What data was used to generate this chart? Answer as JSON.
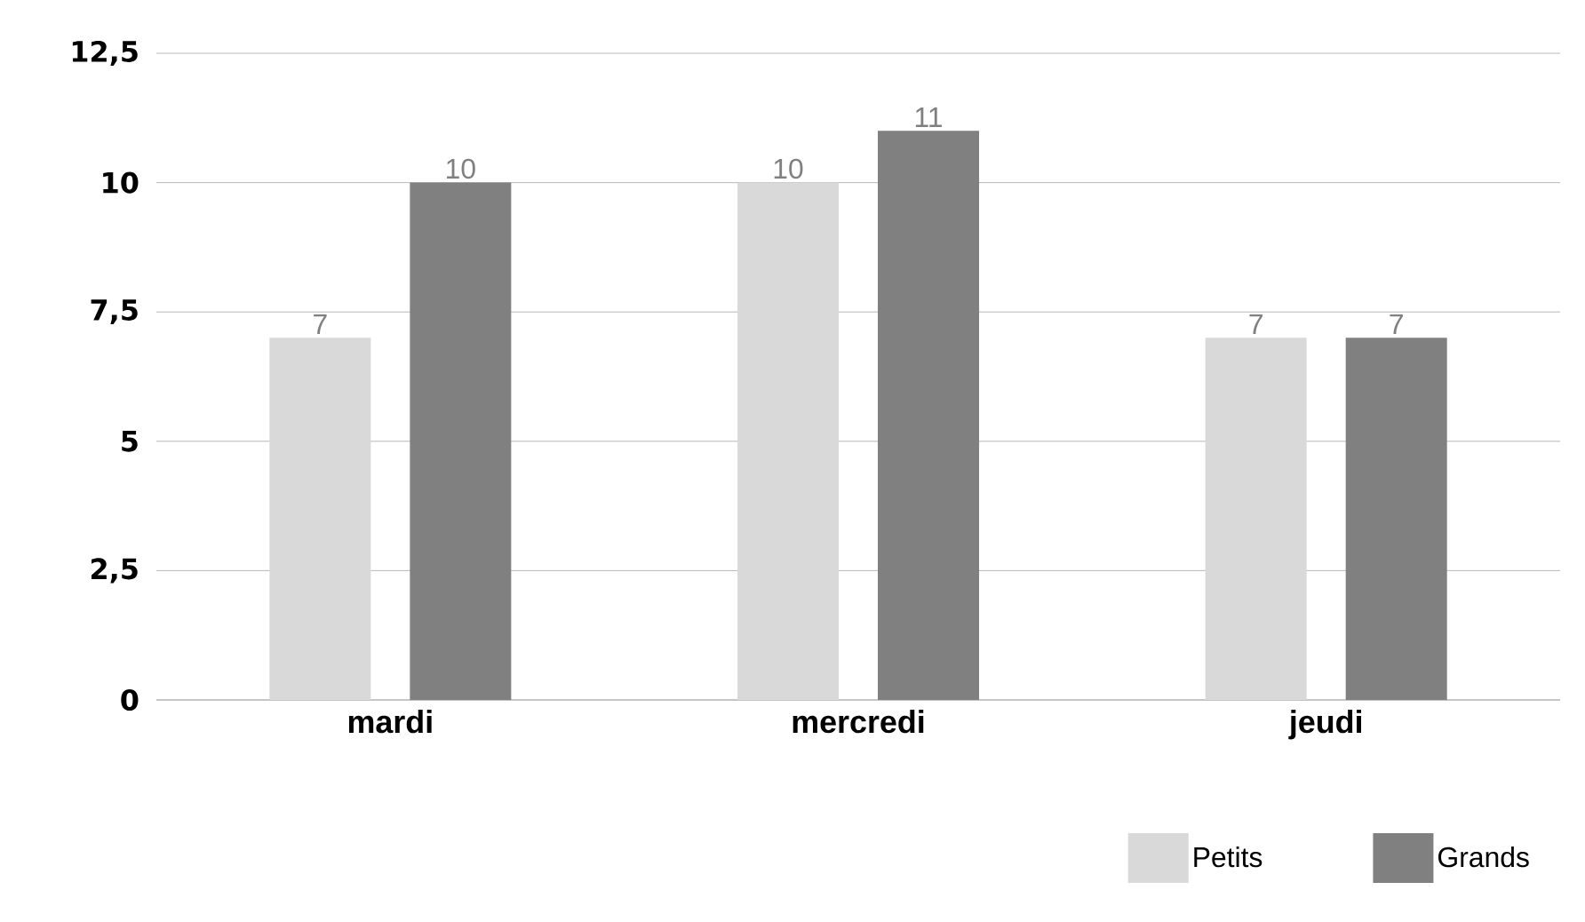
{
  "chart_data": {
    "type": "bar",
    "categories": [
      "mardi",
      "mercredi",
      "jeudi"
    ],
    "series": [
      {
        "name": "Petits",
        "color": "#d9d9d9",
        "values": [
          7,
          10,
          7
        ]
      },
      {
        "name": "Grands",
        "color": "#808080",
        "values": [
          10,
          11,
          7
        ]
      }
    ],
    "ylim": [
      0,
      12.5
    ],
    "yticks": [
      0,
      {
        "value": 2.5,
        "label": "2,5"
      },
      5,
      {
        "value": 7.5,
        "label": "7,5"
      },
      10,
      {
        "value": 12.5,
        "label": "12,5"
      }
    ],
    "grid": "y",
    "legend": "bottom right",
    "data_labels": true
  }
}
